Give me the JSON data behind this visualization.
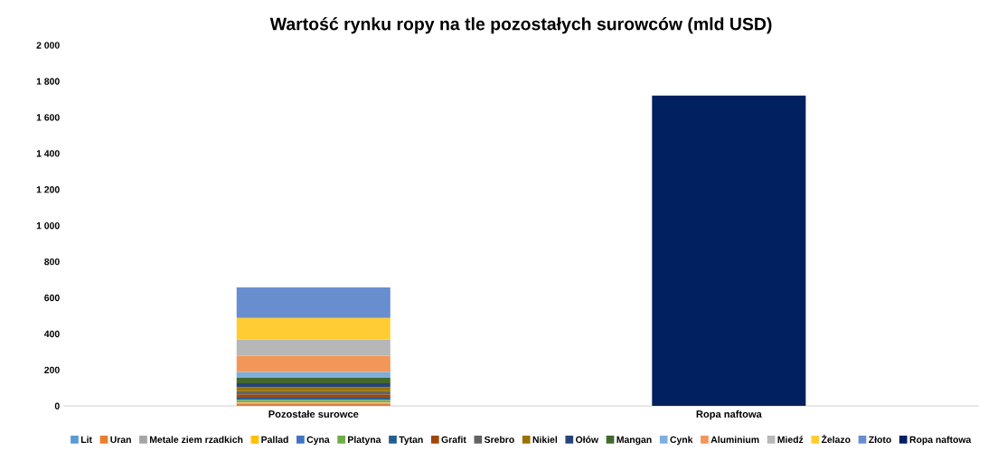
{
  "chart_data": {
    "type": "bar",
    "title": "Wartość rynku ropy na tle pozostałych surowców (mld USD)",
    "categories": [
      "Pozostałe surowce",
      "Ropa naftowa"
    ],
    "stacked": true,
    "series": [
      {
        "name": "Lit",
        "color": "#5b9bd5",
        "values": [
          5,
          null
        ]
      },
      {
        "name": "Uran",
        "color": "#ed7d31",
        "values": [
          8,
          null
        ]
      },
      {
        "name": "Metale ziem rzadkich",
        "color": "#a5a5a5",
        "values": [
          5,
          null
        ]
      },
      {
        "name": "Pallad",
        "color": "#ffc000",
        "values": [
          4,
          null
        ]
      },
      {
        "name": "Cyna",
        "color": "#4472c4",
        "values": [
          5,
          null
        ]
      },
      {
        "name": "Platyna",
        "color": "#70ad47",
        "values": [
          7,
          null
        ]
      },
      {
        "name": "Tytan",
        "color": "#255e91",
        "values": [
          12,
          null
        ]
      },
      {
        "name": "Grafit",
        "color": "#9e480e",
        "values": [
          19,
          null
        ]
      },
      {
        "name": "Srebro",
        "color": "#636363",
        "values": [
          17,
          null
        ]
      },
      {
        "name": "Nikiel",
        "color": "#997300",
        "values": [
          22,
          null
        ]
      },
      {
        "name": "Ołów",
        "color": "#264478",
        "values": [
          22,
          null
        ]
      },
      {
        "name": "Mangan",
        "color": "#43682b",
        "values": [
          32,
          null
        ]
      },
      {
        "name": "Cynk",
        "color": "#7cafdd",
        "values": [
          30,
          null
        ]
      },
      {
        "name": "Aluminium",
        "color": "#f1975a",
        "values": [
          90,
          null
        ]
      },
      {
        "name": "Miedź",
        "color": "#b7b7b7",
        "values": [
          90,
          null
        ]
      },
      {
        "name": "Żelazo",
        "color": "#ffcd33",
        "values": [
          120,
          null
        ]
      },
      {
        "name": "Złoto",
        "color": "#698ed0",
        "values": [
          169,
          null
        ]
      },
      {
        "name": "Ropa naftowa",
        "color": "#002060",
        "values": [
          null,
          1720
        ]
      }
    ],
    "ylim": [
      0,
      2000
    ],
    "yticks": [
      0,
      200,
      400,
      600,
      800,
      {
        "value": 1000,
        "label": "1 000"
      },
      {
        "value": 1200,
        "label": "1 200"
      },
      {
        "value": 1400,
        "label": "1 400"
      },
      {
        "value": 1600,
        "label": "1 600"
      },
      {
        "value": 1800,
        "label": "1 800"
      },
      {
        "value": 2000,
        "label": "2 000"
      }
    ],
    "grid": false,
    "legend": "bottom"
  }
}
